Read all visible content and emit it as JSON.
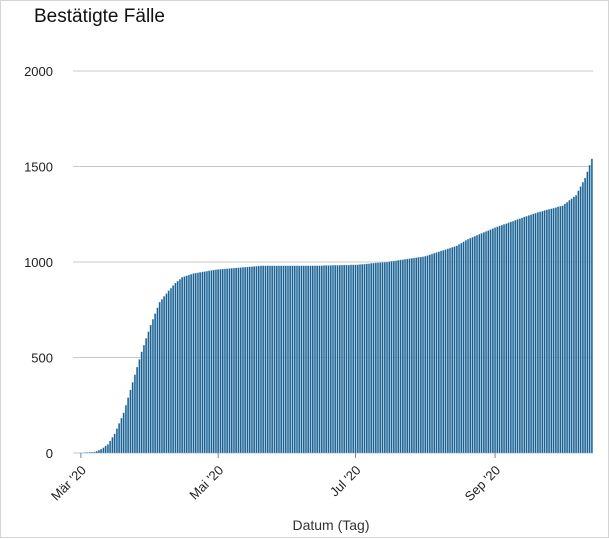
{
  "chart_data": {
    "type": "bar",
    "title": "Bestätigte Fälle",
    "xlabel": "Datum (Tag)",
    "ylabel": "",
    "ylim": [
      0,
      2000
    ],
    "yticks": [
      "0",
      "500",
      "1000",
      "1500",
      "2000"
    ],
    "xticks": [
      {
        "label": "Mär '20",
        "date": "2020-03-01"
      },
      {
        "label": "Mai '20",
        "date": "2020-05-01"
      },
      {
        "label": "Jul '20",
        "date": "2020-07-01"
      },
      {
        "label": "Sep '20",
        "date": "2020-09-01"
      }
    ],
    "x_start": "2020-02-27",
    "x_end": "2020-10-14",
    "grid": true,
    "legend": "none",
    "colors": {
      "bar": "#1f5f8f",
      "bar_edge": "#9ecde6",
      "grid": "#c8c8c8"
    },
    "series": [
      {
        "x": [
          "2020-02-27",
          "2020-03-07",
          "2020-03-10",
          "2020-03-13",
          "2020-03-16",
          "2020-03-20",
          "2020-03-24",
          "2020-03-28",
          "2020-04-01",
          "2020-04-05",
          "2020-04-09",
          "2020-04-12",
          "2020-04-15",
          "2020-04-20",
          "2020-04-30",
          "2020-05-10",
          "2020-05-20",
          "2020-06-10",
          "2020-07-01",
          "2020-07-15",
          "2020-08-01",
          "2020-08-15",
          "2020-08-20",
          "2020-09-01",
          "2020-09-15",
          "2020-09-20",
          "2020-10-01",
          "2020-10-07",
          "2020-10-11",
          "2020-10-14"
        ],
        "values": [
          0,
          5,
          20,
          45,
          100,
          210,
          370,
          530,
          670,
          790,
          850,
          890,
          920,
          940,
          960,
          970,
          980,
          980,
          985,
          1000,
          1030,
          1085,
          1120,
          1180,
          1240,
          1260,
          1295,
          1350,
          1440,
          1540
        ]
      }
    ]
  }
}
